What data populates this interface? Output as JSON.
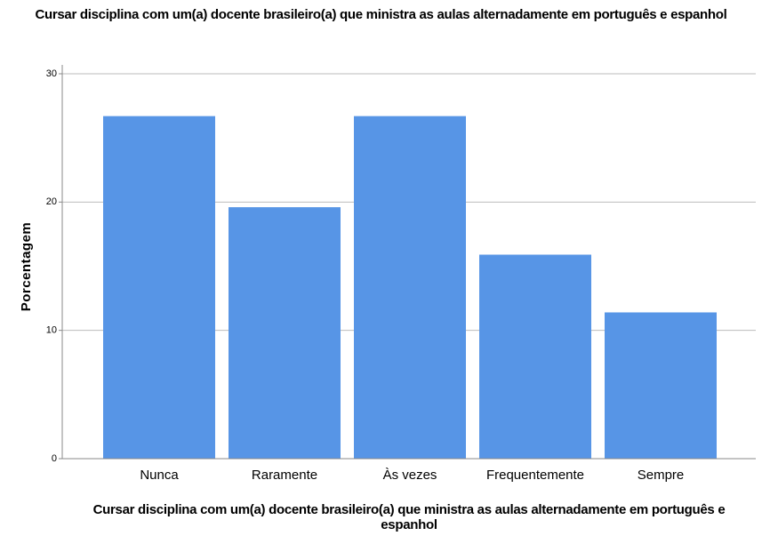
{
  "chart_data": {
    "type": "bar",
    "title": "Cursar disciplina com um(a) docente brasileiro(a) que ministra as aulas alternadamente em português e espanhol",
    "x_label": "Cursar disciplina com um(a) docente brasileiro(a) que ministra as aulas alternadamente em português e espanhol",
    "y_label": "Porcentagem",
    "categories": [
      "Nunca",
      "Raramente",
      "Às vezes",
      "Frequentemente",
      "Sempre"
    ],
    "values": [
      26.7,
      19.6,
      26.7,
      15.9,
      11.4
    ],
    "color": "#5795e6",
    "ylim": [
      0,
      30
    ],
    "yticks": [
      0,
      10,
      20,
      30
    ],
    "grid": true
  }
}
